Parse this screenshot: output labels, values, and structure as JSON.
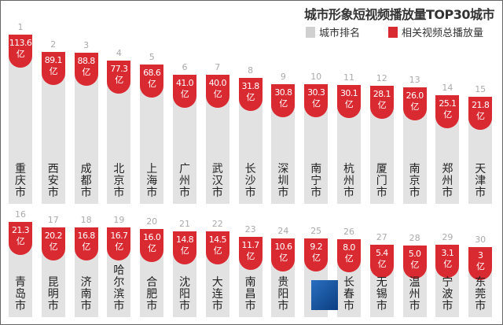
{
  "chart_data": {
    "type": "bar",
    "title": "城市形象短视频播放量TOP30城市",
    "legend": [
      {
        "label": "城市排名",
        "color": "#e2e2e2"
      },
      {
        "label": "相关视频总播放量",
        "color": "#d92a32"
      }
    ],
    "legend_position": "top-right",
    "unit": "亿",
    "ranks": [
      1,
      2,
      3,
      4,
      5,
      6,
      7,
      8,
      9,
      10,
      11,
      12,
      13,
      14,
      15,
      16,
      17,
      18,
      19,
      20,
      21,
      22,
      23,
      24,
      25,
      26,
      27,
      28,
      29,
      30
    ],
    "categories": [
      "重庆市",
      "西安市",
      "成都市",
      "北京市",
      "上海市",
      "广州市",
      "武汉市",
      "长沙市",
      "深圳市",
      "南宁市",
      "杭州市",
      "厦门市",
      "南京市",
      "郑州市",
      "天津市",
      "青岛市",
      "昆明市",
      "济南市",
      "哈尔滨市",
      "合肥市",
      "沈阳市",
      "大连市",
      "南昌市",
      "贵阳市",
      "市",
      "长春市",
      "无锡市",
      "温州市",
      "宁波市",
      "东莞市"
    ],
    "values": [
      113.6,
      89.1,
      88.8,
      77.3,
      68.6,
      41.0,
      40.0,
      31.8,
      30.8,
      30.3,
      30.1,
      28.1,
      26.0,
      25.1,
      21.8,
      21.3,
      20.2,
      16.8,
      16.7,
      16.0,
      14.8,
      14.5,
      11.7,
      10.6,
      9.2,
      8.0,
      5.4,
      5.0,
      3.1,
      3
    ],
    "labels": [
      "113.6",
      "89.1",
      "88.8",
      "77.3",
      "68.6",
      "41.0",
      "40.0",
      "31.8",
      "30.8",
      "30.3",
      "30.1",
      "28.1",
      "26.0",
      "25.1",
      "21.8",
      "21.3",
      "20.2",
      "16.8",
      "16.7",
      "16.0",
      "14.8",
      "14.5",
      "11.7",
      "10.6",
      "9.2",
      "8.0",
      "5.4",
      "5.0",
      "3.1",
      "3"
    ]
  }
}
